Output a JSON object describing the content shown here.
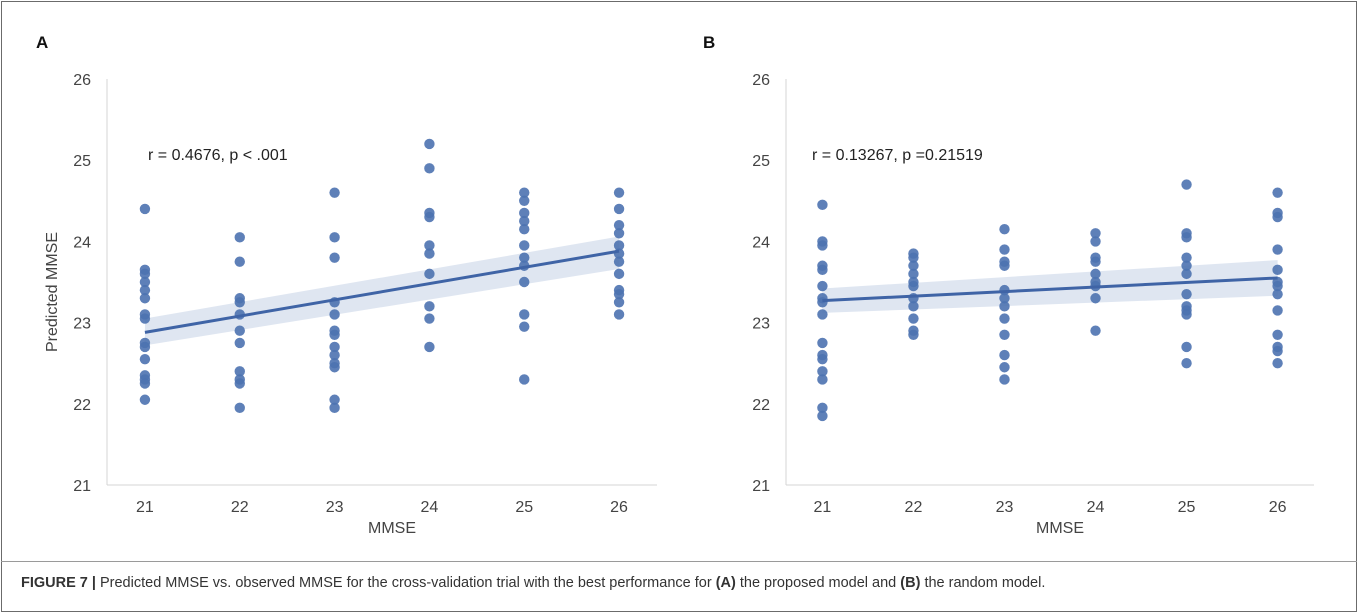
{
  "chart_data": [
    {
      "panel_label": "A",
      "type": "scatter",
      "xlabel": "MMSE",
      "ylabel": "Predicted MMSE",
      "x_ticks": [
        "21",
        "22",
        "23",
        "24",
        "25",
        "26"
      ],
      "y_ticks": [
        "21",
        "22",
        "23",
        "24",
        "25",
        "26"
      ],
      "xlim": [
        20.6,
        26.4
      ],
      "ylim": [
        21,
        26
      ],
      "annotation": "r = 0.4676, p < .001",
      "point_color": "#4c72b0",
      "points": [
        {
          "x": 21,
          "y": [
            24.4,
            23.65,
            23.6,
            23.5,
            23.4,
            23.3,
            23.1,
            23.05,
            22.75,
            22.7,
            22.55,
            22.35,
            22.3,
            22.25,
            22.05
          ]
        },
        {
          "x": 22,
          "y": [
            24.05,
            23.75,
            23.3,
            23.25,
            23.1,
            22.9,
            22.75,
            22.4,
            22.3,
            22.25,
            21.95
          ]
        },
        {
          "x": 23,
          "y": [
            24.6,
            24.05,
            23.8,
            23.25,
            23.1,
            22.9,
            22.85,
            22.7,
            22.6,
            22.5,
            22.45,
            22.05,
            21.95
          ]
        },
        {
          "x": 24,
          "y": [
            25.2,
            24.9,
            24.35,
            24.3,
            23.95,
            23.85,
            23.6,
            23.2,
            23.05,
            22.7
          ]
        },
        {
          "x": 25,
          "y": [
            24.6,
            24.5,
            24.35,
            24.25,
            24.15,
            23.95,
            23.8,
            23.7,
            23.5,
            23.1,
            22.95,
            22.3
          ]
        },
        {
          "x": 26,
          "y": [
            24.6,
            24.4,
            24.2,
            24.1,
            23.95,
            23.85,
            23.75,
            23.6,
            23.4,
            23.35,
            23.25,
            23.1
          ]
        }
      ],
      "regression": {
        "x": [
          21,
          26
        ],
        "y": [
          22.88,
          23.88
        ],
        "ci_low": [
          22.72,
          23.66
        ],
        "ci_high": [
          23.05,
          24.06
        ]
      }
    },
    {
      "panel_label": "B",
      "type": "scatter",
      "xlabel": "MMSE",
      "ylabel": "",
      "x_ticks": [
        "21",
        "22",
        "23",
        "24",
        "25",
        "26"
      ],
      "y_ticks": [
        "21",
        "22",
        "23",
        "24",
        "25",
        "26"
      ],
      "xlim": [
        20.6,
        26.4
      ],
      "ylim": [
        21,
        26
      ],
      "annotation": "r = 0.13267, p =0.21519",
      "point_color": "#4c72b0",
      "points": [
        {
          "x": 21,
          "y": [
            24.45,
            24.0,
            23.95,
            23.7,
            23.65,
            23.45,
            23.3,
            23.25,
            23.1,
            22.75,
            22.6,
            22.55,
            22.4,
            22.3,
            21.95,
            21.85
          ]
        },
        {
          "x": 22,
          "y": [
            23.85,
            23.8,
            23.7,
            23.6,
            23.5,
            23.45,
            23.3,
            23.2,
            23.05,
            22.9,
            22.85
          ]
        },
        {
          "x": 23,
          "y": [
            24.15,
            23.9,
            23.75,
            23.7,
            23.4,
            23.3,
            23.2,
            23.05,
            22.85,
            22.6,
            22.45,
            22.3
          ]
        },
        {
          "x": 24,
          "y": [
            24.1,
            24.0,
            23.8,
            23.75,
            23.6,
            23.5,
            23.45,
            23.3,
            22.9
          ]
        },
        {
          "x": 25,
          "y": [
            24.7,
            24.1,
            24.05,
            23.8,
            23.7,
            23.6,
            23.35,
            23.2,
            23.15,
            23.1,
            22.7,
            22.5
          ]
        },
        {
          "x": 26,
          "y": [
            24.6,
            24.35,
            24.3,
            23.9,
            23.65,
            23.5,
            23.45,
            23.35,
            23.15,
            22.85,
            22.7,
            22.65,
            22.5
          ]
        }
      ],
      "regression": {
        "x": [
          21,
          26
        ],
        "y": [
          23.27,
          23.55
        ],
        "ci_low": [
          23.12,
          23.33
        ],
        "ci_high": [
          23.42,
          23.77
        ]
      }
    }
  ],
  "caption": {
    "prefix": "FIGURE 7 |",
    "text_1": " Predicted MMSE vs. observed MMSE for the cross-validation trial with the best performance for ",
    "ref_a": "(A)",
    "text_2": " the proposed model and ",
    "ref_b": "(B)",
    "text_3": " the random model."
  }
}
